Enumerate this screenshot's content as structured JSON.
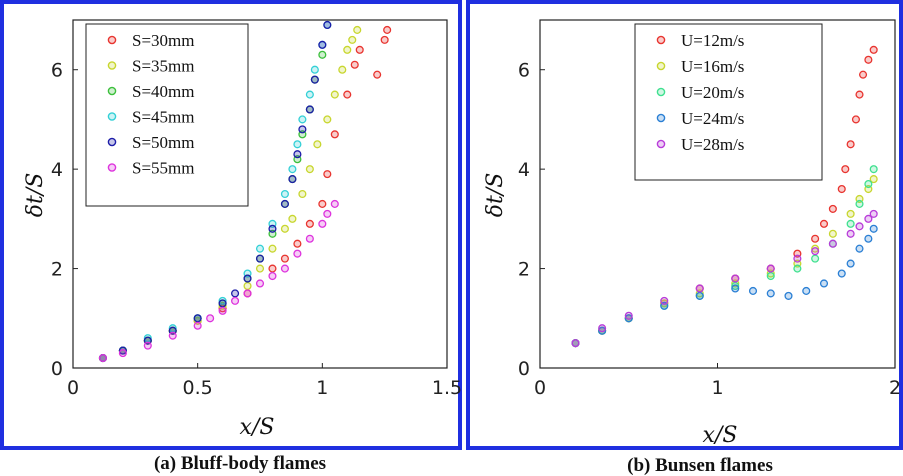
{
  "chart_data": [
    {
      "type": "scatter",
      "caption": "(a) Bluff-body flames",
      "xlabel": "x/S",
      "ylabel": "δt/S",
      "xlim": [
        0,
        1.5
      ],
      "ylim": [
        0,
        7
      ],
      "xticks": [
        "0",
        "0.5",
        "1",
        "1.5"
      ],
      "yticks": [
        "0",
        "2",
        "4",
        "6"
      ],
      "grid": false,
      "legend_position": "top-left",
      "series": [
        {
          "name": "S=30mm",
          "color": "#e8342f",
          "x": [
            0.12,
            0.2,
            0.3,
            0.4,
            0.5,
            0.6,
            0.7,
            0.8,
            0.85,
            0.9,
            0.95,
            1.0,
            1.02,
            1.05,
            1.1,
            1.13,
            1.15,
            1.22,
            1.25,
            1.26
          ],
          "y": [
            0.2,
            0.35,
            0.55,
            0.75,
            0.95,
            1.2,
            1.5,
            2.0,
            2.2,
            2.5,
            2.9,
            3.3,
            3.9,
            4.7,
            5.5,
            6.1,
            6.4,
            5.9,
            6.6,
            6.8
          ]
        },
        {
          "name": "S=35mm",
          "color": "#c8d62e",
          "x": [
            0.12,
            0.2,
            0.3,
            0.4,
            0.5,
            0.6,
            0.7,
            0.75,
            0.8,
            0.85,
            0.88,
            0.92,
            0.95,
            0.98,
            1.02,
            1.05,
            1.08,
            1.1,
            1.12,
            1.14
          ],
          "y": [
            0.2,
            0.35,
            0.55,
            0.75,
            0.95,
            1.25,
            1.65,
            2.0,
            2.4,
            2.8,
            3.0,
            3.5,
            4.0,
            4.5,
            5.0,
            5.5,
            6.0,
            6.4,
            6.6,
            6.8
          ]
        },
        {
          "name": "S=40mm",
          "color": "#3bbf3b",
          "x": [
            0.12,
            0.2,
            0.3,
            0.4,
            0.5,
            0.6,
            0.7,
            0.75,
            0.8,
            0.85,
            0.88,
            0.9,
            0.92,
            0.95,
            0.97,
            1.0
          ],
          "y": [
            0.2,
            0.35,
            0.55,
            0.75,
            1.0,
            1.3,
            1.8,
            2.2,
            2.7,
            3.3,
            3.8,
            4.2,
            4.7,
            5.2,
            5.8,
            6.3
          ]
        },
        {
          "name": "S=45mm",
          "color": "#33d0d6",
          "x": [
            0.12,
            0.2,
            0.3,
            0.4,
            0.5,
            0.6,
            0.7,
            0.75,
            0.8,
            0.85,
            0.88,
            0.9,
            0.92,
            0.95,
            0.97,
            1.0,
            1.02
          ],
          "y": [
            0.2,
            0.35,
            0.6,
            0.8,
            1.0,
            1.35,
            1.9,
            2.4,
            2.9,
            3.5,
            4.0,
            4.5,
            5.0,
            5.5,
            6.0,
            6.5,
            6.9
          ]
        },
        {
          "name": "S=50mm",
          "color": "#1c1ca8",
          "x": [
            0.12,
            0.2,
            0.3,
            0.4,
            0.5,
            0.6,
            0.65,
            0.7,
            0.75,
            0.8,
            0.85,
            0.88,
            0.9,
            0.92,
            0.95,
            0.97,
            1.0,
            1.02
          ],
          "y": [
            0.2,
            0.35,
            0.55,
            0.75,
            1.0,
            1.3,
            1.5,
            1.8,
            2.2,
            2.8,
            3.3,
            3.8,
            4.3,
            4.8,
            5.2,
            5.8,
            6.5,
            6.9
          ]
        },
        {
          "name": "S=55mm",
          "color": "#dd33dd",
          "x": [
            0.12,
            0.2,
            0.3,
            0.4,
            0.5,
            0.55,
            0.6,
            0.65,
            0.7,
            0.75,
            0.8,
            0.85,
            0.9,
            0.95,
            1.0,
            1.02,
            1.05
          ],
          "y": [
            0.2,
            0.3,
            0.45,
            0.65,
            0.85,
            1.0,
            1.15,
            1.35,
            1.5,
            1.7,
            1.85,
            2.0,
            2.3,
            2.6,
            2.9,
            3.1,
            3.3
          ]
        }
      ]
    },
    {
      "type": "scatter",
      "caption": "(b) Bunsen flames",
      "xlabel": "x/S",
      "ylabel": "δt/S",
      "xlim": [
        0,
        2
      ],
      "ylim": [
        0,
        7
      ],
      "xticks": [
        "0",
        "1",
        "2"
      ],
      "yticks": [
        "0",
        "2",
        "4",
        "6"
      ],
      "grid": false,
      "legend_position": "top-right",
      "series": [
        {
          "name": "U=12m/s",
          "color": "#e8342f",
          "x": [
            0.2,
            0.35,
            0.5,
            0.7,
            0.9,
            1.1,
            1.3,
            1.45,
            1.55,
            1.6,
            1.65,
            1.7,
            1.72,
            1.75,
            1.78,
            1.8,
            1.82,
            1.85,
            1.88
          ],
          "y": [
            0.5,
            0.75,
            1.0,
            1.3,
            1.6,
            1.8,
            2.0,
            2.3,
            2.6,
            2.9,
            3.2,
            3.6,
            4.0,
            4.5,
            5.0,
            5.5,
            5.9,
            6.2,
            6.4
          ]
        },
        {
          "name": "U=16m/s",
          "color": "#c8d62e",
          "x": [
            0.2,
            0.35,
            0.5,
            0.7,
            0.9,
            1.1,
            1.3,
            1.45,
            1.55,
            1.65,
            1.75,
            1.8,
            1.85,
            1.88
          ],
          "y": [
            0.5,
            0.75,
            1.0,
            1.3,
            1.5,
            1.7,
            1.9,
            2.1,
            2.4,
            2.7,
            3.1,
            3.4,
            3.6,
            3.8
          ]
        },
        {
          "name": "U=20m/s",
          "color": "#3fe08f",
          "x": [
            0.2,
            0.35,
            0.5,
            0.7,
            0.9,
            1.1,
            1.3,
            1.45,
            1.55,
            1.65,
            1.75,
            1.8,
            1.85,
            1.88
          ],
          "y": [
            0.5,
            0.75,
            1.0,
            1.25,
            1.45,
            1.65,
            1.85,
            2.0,
            2.2,
            2.5,
            2.9,
            3.3,
            3.7,
            4.0
          ]
        },
        {
          "name": "U=24m/s",
          "color": "#2a7fd4",
          "x": [
            0.2,
            0.35,
            0.5,
            0.7,
            0.9,
            1.1,
            1.2,
            1.3,
            1.4,
            1.5,
            1.6,
            1.7,
            1.75,
            1.8,
            1.85,
            1.88
          ],
          "y": [
            0.5,
            0.75,
            1.0,
            1.25,
            1.45,
            1.6,
            1.55,
            1.5,
            1.45,
            1.55,
            1.7,
            1.9,
            2.1,
            2.4,
            2.6,
            2.8
          ]
        },
        {
          "name": "U=28m/s",
          "color": "#b83bd9",
          "x": [
            0.2,
            0.35,
            0.5,
            0.7,
            0.9,
            1.1,
            1.3,
            1.45,
            1.55,
            1.65,
            1.75,
            1.8,
            1.85,
            1.88
          ],
          "y": [
            0.5,
            0.8,
            1.05,
            1.35,
            1.6,
            1.8,
            2.0,
            2.2,
            2.35,
            2.5,
            2.7,
            2.85,
            3.0,
            3.1
          ]
        }
      ]
    }
  ]
}
